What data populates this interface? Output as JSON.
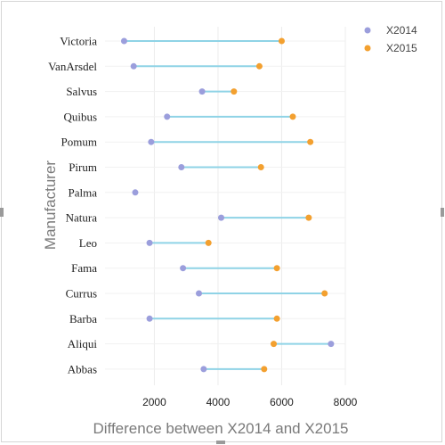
{
  "chart_data": {
    "type": "dumbbell",
    "categories": [
      "Victoria",
      "VanArsdel",
      "Salvus",
      "Quibus",
      "Pomum",
      "Pirum",
      "Palma",
      "Natura",
      "Leo",
      "Fama",
      "Currus",
      "Barba",
      "Aliqui",
      "Abbas"
    ],
    "series": [
      {
        "name": "X2014",
        "color": "#9b9edc",
        "values": [
          1050,
          1350,
          3500,
          2400,
          1900,
          2850,
          1400,
          4100,
          1850,
          2900,
          3400,
          1850,
          7550,
          3550
        ]
      },
      {
        "name": "X2015",
        "color": "#f3a02f",
        "values": [
          6000,
          5300,
          4500,
          6350,
          6900,
          5350,
          null,
          6850,
          3700,
          5850,
          7350,
          5850,
          5750,
          5450
        ]
      }
    ],
    "connector_color": "#8fd3e6",
    "xlabel": "Difference between X2014 and X2015",
    "ylabel": "Manufacturer",
    "xlim": [
      450,
      8000
    ],
    "xticks": [
      2000,
      4000,
      6000,
      8000
    ],
    "grid": true,
    "legend_position": "top-right"
  }
}
